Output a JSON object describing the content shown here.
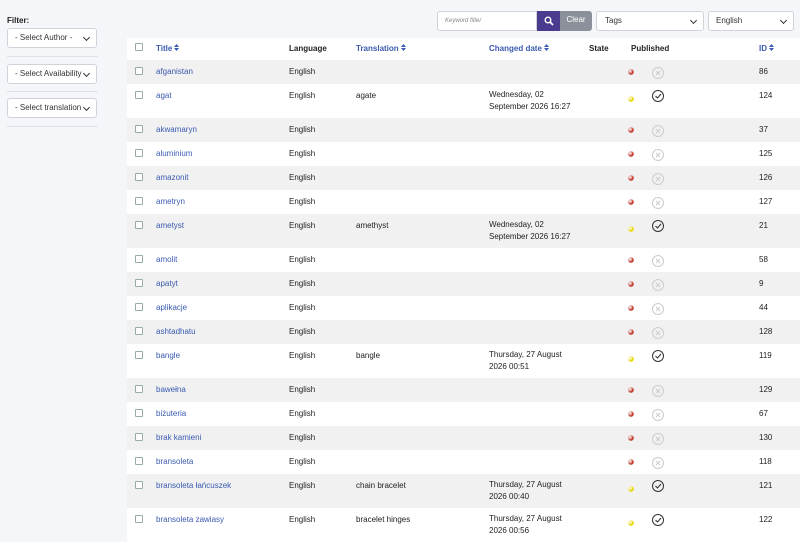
{
  "filter": {
    "label": "Filter:",
    "selects": [
      "- Select Author -",
      "- Select Availability",
      "- Select translation"
    ]
  },
  "toolbar": {
    "search_placeholder": "Keyword filter",
    "clear": "Clear",
    "tags": "Tags",
    "language": "English"
  },
  "table": {
    "headers": [
      "Title",
      "Language",
      "Translation",
      "Changed date",
      "State",
      "Published",
      "ID"
    ],
    "rows": [
      {
        "title": "afganistan",
        "language": "English",
        "translation": null,
        "changed": null,
        "state": "#c0392b",
        "published": false,
        "id": 86
      },
      {
        "title": "agat",
        "language": "English",
        "translation": "agate",
        "changed": "Wednesday, 02 September 2026 16:27",
        "state": "#e8d800",
        "published": true,
        "id": 124
      },
      {
        "title": "akwamaryn",
        "language": "English",
        "translation": null,
        "changed": null,
        "state": "#c0392b",
        "published": false,
        "id": 37
      },
      {
        "title": "aluminium",
        "language": "English",
        "translation": null,
        "changed": null,
        "state": "#c0392b",
        "published": false,
        "id": 125
      },
      {
        "title": "amazonit",
        "language": "English",
        "translation": null,
        "changed": null,
        "state": "#c0392b",
        "published": false,
        "id": 126
      },
      {
        "title": "ametryn",
        "language": "English",
        "translation": null,
        "changed": null,
        "state": "#c0392b",
        "published": false,
        "id": 127
      },
      {
        "title": "ametyst",
        "language": "English",
        "translation": "amethyst",
        "changed": "Wednesday, 02 September 2026 16:27",
        "state": "#e8d800",
        "published": true,
        "id": 21
      },
      {
        "title": "amolit",
        "language": "English",
        "translation": null,
        "changed": null,
        "state": "#c0392b",
        "published": false,
        "id": 58
      },
      {
        "title": "apatyt",
        "language": "English",
        "translation": null,
        "changed": null,
        "state": "#c0392b",
        "published": false,
        "id": 9
      },
      {
        "title": "aplikacje",
        "language": "English",
        "translation": null,
        "changed": null,
        "state": "#c0392b",
        "published": false,
        "id": 44
      },
      {
        "title": "ashtadhatu",
        "language": "English",
        "translation": null,
        "changed": null,
        "state": "#c0392b",
        "published": false,
        "id": 128
      },
      {
        "title": "bangle",
        "language": "English",
        "translation": "bangle",
        "changed": "Thursday, 27 August 2026 00:51",
        "state": "#e8d800",
        "published": true,
        "id": 119
      },
      {
        "title": "bawełna",
        "language": "English",
        "translation": null,
        "changed": null,
        "state": "#c0392b",
        "published": false,
        "id": 129
      },
      {
        "title": "biżuteria",
        "language": "English",
        "translation": null,
        "changed": null,
        "state": "#c0392b",
        "published": false,
        "id": 67
      },
      {
        "title": "brak kamieni",
        "language": "English",
        "translation": null,
        "changed": null,
        "state": "#c0392b",
        "published": false,
        "id": 130
      },
      {
        "title": "bransoleta",
        "language": "English",
        "translation": null,
        "changed": null,
        "state": "#c0392b",
        "published": false,
        "id": 118
      },
      {
        "title": "bransoleta łańcuszek",
        "language": "English",
        "translation": "chain bracelet",
        "changed": "Thursday, 27 August 2026 00:40",
        "state": "#e8d800",
        "published": true,
        "id": 121
      },
      {
        "title": "bransoleta zawiasy",
        "language": "English",
        "translation": "bracelet hinges",
        "changed": "Thursday, 27 August 2026 00:56",
        "state": "#e8d800",
        "published": true,
        "id": 122
      }
    ]
  }
}
